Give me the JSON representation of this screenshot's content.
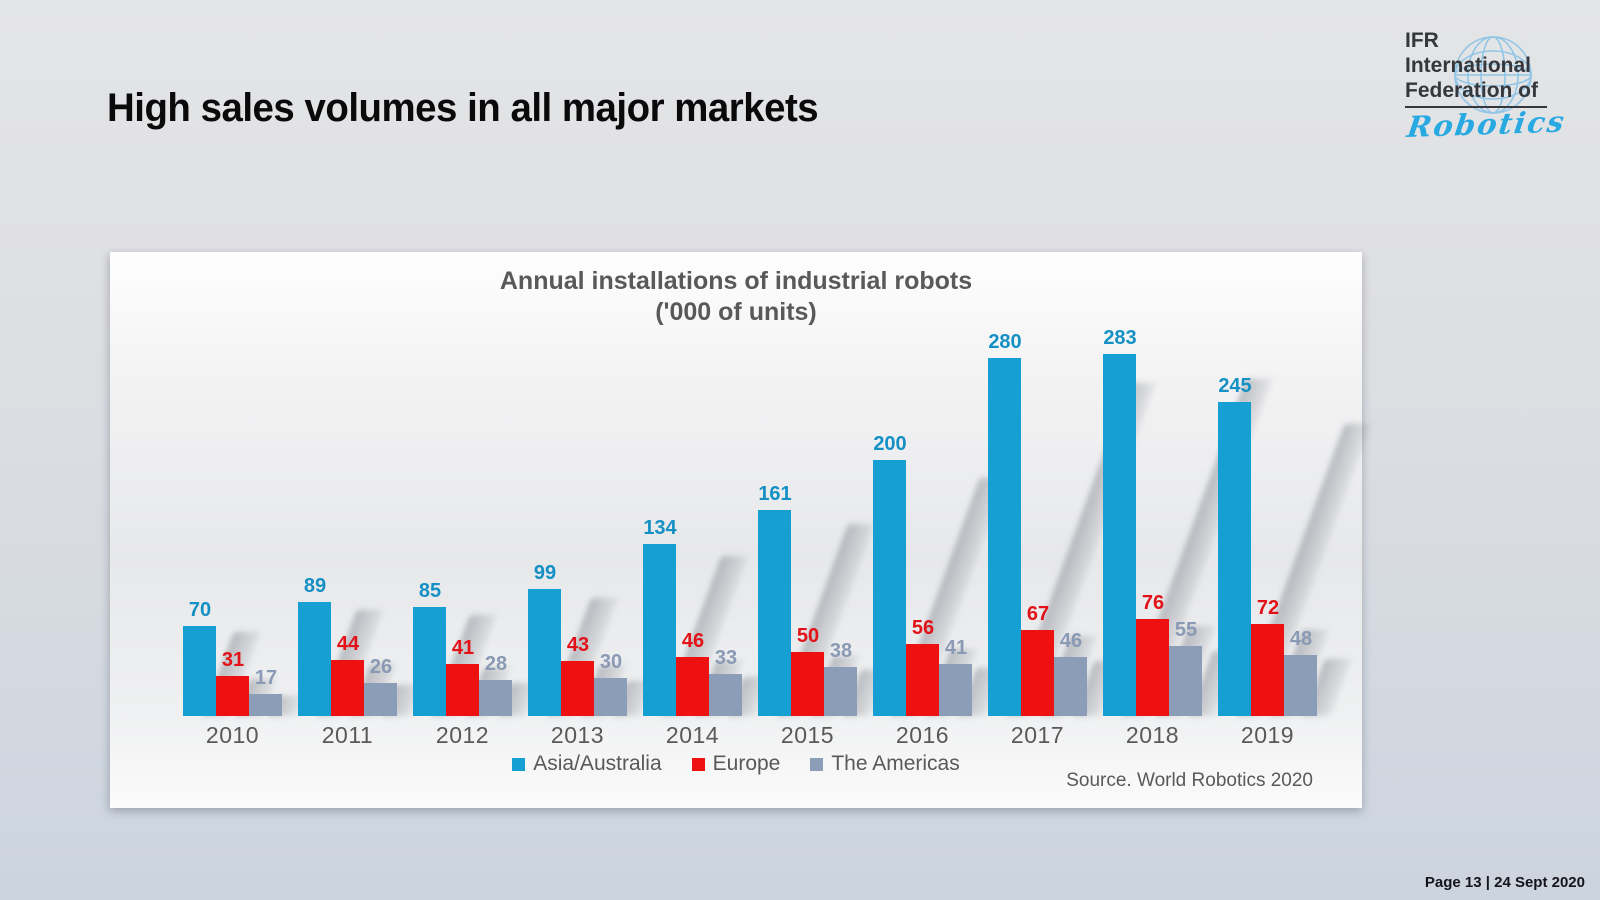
{
  "header": {
    "title": "High sales volumes in all major markets"
  },
  "logo": {
    "line1": "IFR",
    "line2": "International",
    "line3": "Federation of",
    "script": "Robotics",
    "text_color": "#35373c",
    "accent_color": "#29a9e2"
  },
  "chart_data": {
    "type": "bar",
    "title_line1": "Annual installations of industrial robots",
    "title_line2": "('000 of units)",
    "categories": [
      "2010",
      "2011",
      "2012",
      "2013",
      "2014",
      "2015",
      "2016",
      "2017",
      "2018",
      "2019"
    ],
    "series": [
      {
        "name": "Asia/Australia",
        "color": "#159fd3",
        "label_color": "#1590c4",
        "values": [
          70,
          89,
          85,
          99,
          134,
          161,
          200,
          280,
          283,
          245
        ]
      },
      {
        "name": "Europe",
        "color": "#ee1111",
        "label_color": "#e21218",
        "values": [
          31,
          44,
          41,
          43,
          46,
          50,
          56,
          67,
          76,
          72
        ]
      },
      {
        "name": "The Americas",
        "color": "#8c9db7",
        "label_color": "#8a9ab4",
        "values": [
          17,
          26,
          28,
          30,
          33,
          38,
          41,
          46,
          55,
          48
        ]
      }
    ],
    "ylim": [
      0,
      300
    ],
    "grid": false,
    "legend_position": "bottom",
    "source": "Source. World Robotics 2020"
  },
  "footer": {
    "text": "Page 13 | 24 Sept 2020"
  }
}
